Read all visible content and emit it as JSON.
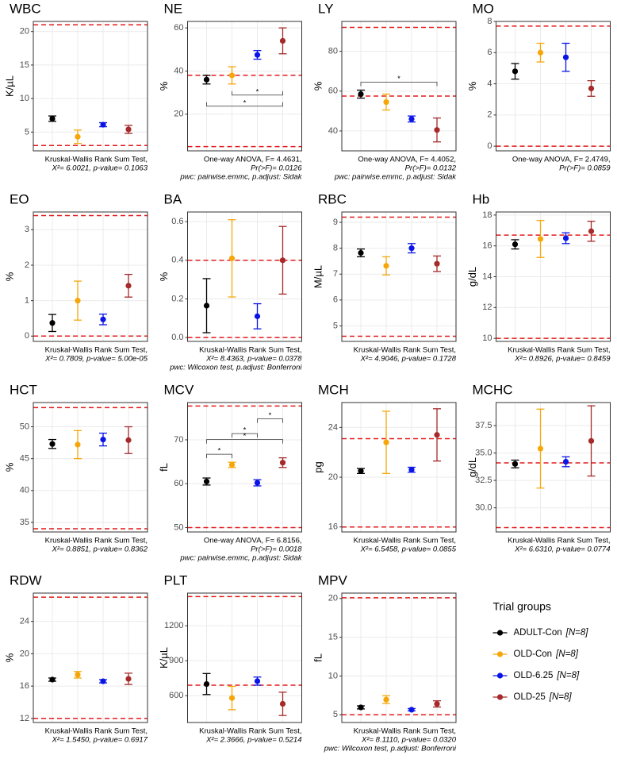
{
  "legend": {
    "title": "Trial groups",
    "entries": [
      {
        "name": "ADULT-Con",
        "n": "[N=8]",
        "color": "#000000"
      },
      {
        "name": "OLD-Con",
        "n": "[N=8]",
        "color": "#f5a70a"
      },
      {
        "name": "OLD-6.25",
        "n": "[N=8]",
        "color": "#0a14e6"
      },
      {
        "name": "OLD-25",
        "n": "[N=8]",
        "color": "#a52a2a"
      }
    ]
  },
  "chart_data": [
    {
      "type": "errorbar",
      "title": "WBC",
      "ylabel": "K/µL",
      "values": [
        7.0,
        4.3,
        6.1,
        5.4
      ],
      "errors": [
        0.4,
        1.0,
        0.3,
        0.6
      ],
      "ylim": [
        2.2,
        21.5
      ],
      "yticks": [
        5,
        10,
        15,
        20
      ],
      "ref_lines": [
        3,
        21
      ],
      "grid": true,
      "notes": [
        "Kruskal-Wallis Rank Sum Test,",
        "X²= 6.0021, p-value= 0.1063"
      ]
    },
    {
      "type": "errorbar",
      "title": "NE",
      "ylabel": "%",
      "values": [
        36,
        38,
        47.5,
        54
      ],
      "errors": [
        2,
        4,
        2,
        6
      ],
      "ylim": [
        3,
        63
      ],
      "yticks": [
        20,
        40,
        60
      ],
      "ref_lines": [
        5,
        38
      ],
      "grid": true,
      "brackets": [
        {
          "groups": [
            1,
            3
          ],
          "label": "*",
          "side": "below"
        },
        {
          "groups": [
            0,
            3
          ],
          "label": "*",
          "side": "below"
        }
      ],
      "notes": [
        "One-way ANOVA, F= 4.4631,",
        "Pr(>F)= 0.0126",
        "pwc: pairwise.emmc, p.adjust: Sidak"
      ]
    },
    {
      "type": "errorbar",
      "title": "LY",
      "ylabel": "%",
      "values": [
        58.5,
        54.5,
        46,
        40.5
      ],
      "errors": [
        2,
        4,
        1.5,
        6
      ],
      "ylim": [
        30,
        95
      ],
      "yticks": [
        40,
        60,
        80
      ],
      "ref_lines": [
        57.5,
        92
      ],
      "grid": true,
      "brackets": [
        {
          "groups": [
            0,
            3
          ],
          "label": "*",
          "side": "above"
        }
      ],
      "notes": [
        "One-way ANOVA, F= 4.4052,",
        "Pr(>F)= 0.0132",
        "pwc: pairwise.emmc, p.adjust: Sidak"
      ]
    },
    {
      "type": "errorbar",
      "title": "MO",
      "ylabel": "%",
      "values": [
        4.8,
        6.0,
        5.7,
        3.7
      ],
      "errors": [
        0.5,
        0.6,
        0.9,
        0.5
      ],
      "ylim": [
        -0.3,
        8
      ],
      "yticks": [
        0,
        2,
        4,
        6,
        8
      ],
      "ref_lines": [
        0,
        7.7
      ],
      "grid": true,
      "notes": [
        "One-way ANOVA, F= 2.4749,",
        "Pr(>F)= 0.0859"
      ]
    },
    {
      "type": "errorbar",
      "title": "EO",
      "ylabel": "%",
      "values": [
        0.37,
        1.0,
        0.47,
        1.42
      ],
      "errors": [
        0.24,
        0.55,
        0.15,
        0.32
      ],
      "ylim": [
        -0.15,
        3.5
      ],
      "yticks": [
        0,
        1,
        2,
        3
      ],
      "ref_lines": [
        0,
        3.4
      ],
      "grid": true,
      "notes": [
        "Kruskal-Wallis Rank Sum Test,",
        "X²= 0.7809, p-value= 5.00e-05"
      ]
    },
    {
      "type": "errorbar",
      "title": "BA",
      "ylabel": "%",
      "values": [
        0.165,
        0.41,
        0.11,
        0.4
      ],
      "errors": [
        0.14,
        0.2,
        0.065,
        0.175
      ],
      "ylim": [
        -0.02,
        0.65
      ],
      "yticks": [
        {
          "value": 0,
          "label": "0.0"
        },
        0.2,
        0.4,
        0.6
      ],
      "ref_lines": [
        0,
        0.4
      ],
      "grid": true,
      "notes": [
        "Kruskal-Wallis Rank Sum Test,",
        "X²= 8.4363, p-value= 0.0378",
        "pwc: Wilcoxon test, p.adjust: Bonferroni"
      ]
    },
    {
      "type": "errorbar",
      "title": "RBC",
      "ylabel": "M/µL",
      "values": [
        7.82,
        7.32,
        8.0,
        7.4
      ],
      "errors": [
        0.15,
        0.35,
        0.18,
        0.3
      ],
      "ylim": [
        4.4,
        9.4
      ],
      "yticks": [
        5,
        6,
        7,
        8,
        9
      ],
      "ref_lines": [
        4.6,
        9.2
      ],
      "grid": true,
      "notes": [
        "Kruskal-Wallis Rank Sum Test,",
        "X²= 4.9046, p-value= 0.1728"
      ]
    },
    {
      "type": "errorbar",
      "title": "Hb",
      "ylabel": "g/dL",
      "values": [
        16.1,
        16.45,
        16.5,
        16.95
      ],
      "errors": [
        0.3,
        1.2,
        0.35,
        0.65
      ],
      "ylim": [
        9.8,
        18.2
      ],
      "yticks": [
        10,
        12,
        14,
        16,
        18
      ],
      "ref_lines": [
        10,
        16.7
      ],
      "grid": true,
      "notes": [
        "Kruskal-Wallis Rank Sum Test,",
        "X²= 0.8926, p-value= 0.8459"
      ]
    },
    {
      "type": "errorbar",
      "title": "HCT",
      "ylabel": "%",
      "values": [
        47.3,
        47.2,
        48,
        47.9
      ],
      "errors": [
        0.7,
        2.2,
        1,
        2.1
      ],
      "ylim": [
        33.5,
        53.8
      ],
      "yticks": [
        35,
        40,
        45,
        50
      ],
      "ref_lines": [
        34,
        53
      ],
      "grid": true,
      "notes": [
        "Kruskal-Wallis Rank Sum Test,",
        "X²= 0.8851, p-value= 0.8362"
      ]
    },
    {
      "type": "errorbar",
      "title": "MCV",
      "ylabel": "fL",
      "values": [
        60.5,
        64.3,
        60.2,
        64.8
      ],
      "errors": [
        0.8,
        0.6,
        0.7,
        1.1
      ],
      "ylim": [
        49,
        78.5
      ],
      "yticks": [
        50,
        60,
        70
      ],
      "ref_lines": [
        50,
        77.7
      ],
      "grid": true,
      "brackets": [
        {
          "groups": [
            0,
            1
          ],
          "label": "*",
          "side": "above"
        },
        {
          "groups": [
            0,
            3
          ],
          "label": "*",
          "side": "above"
        },
        {
          "groups": [
            1,
            2
          ],
          "label": "*",
          "side": "above"
        },
        {
          "groups": [
            2,
            3
          ],
          "label": "*",
          "side": "above"
        }
      ],
      "notes": [
        "One-way ANOVA, F= 6.8156,",
        "Pr(>F)= 0.0018",
        "pwc: pairwise.emmc, p.adjust: Sidak"
      ]
    },
    {
      "type": "errorbar",
      "title": "MCH",
      "ylabel": "pg",
      "values": [
        20.5,
        22.8,
        20.6,
        23.4
      ],
      "errors": [
        0.2,
        2.5,
        0.2,
        2.1
      ],
      "ylim": [
        15.6,
        26
      ],
      "yticks": [
        16,
        20,
        24
      ],
      "ref_lines": [
        16,
        23.1
      ],
      "grid": true,
      "notes": [
        "Kruskal-Wallis Rank Sum Test,",
        "X²= 6.5458, p-value= 0.0855"
      ]
    },
    {
      "type": "errorbar",
      "title": "MCHC",
      "ylabel": "g/dL",
      "values": [
        34.0,
        35.4,
        34.2,
        36.1
      ],
      "errors": [
        0.35,
        3.6,
        0.45,
        3.2
      ],
      "ylim": [
        27.8,
        39.6
      ],
      "yticks": [
        {
          "value": 30,
          "label": "30.0"
        },
        32.5,
        {
          "value": 35,
          "label": "35.0"
        },
        37.5
      ],
      "ref_lines": [
        28.2,
        34.1
      ],
      "grid": true,
      "notes": [
        "Kruskal-Wallis Rank Sum Test,",
        "X²= 6.6310, p-value= 0.0774"
      ]
    },
    {
      "type": "errorbar",
      "title": "RDW",
      "ylabel": "%",
      "values": [
        16.8,
        17.4,
        16.6,
        16.9
      ],
      "errors": [
        0.2,
        0.4,
        0.2,
        0.7
      ],
      "ylim": [
        11.5,
        27.5
      ],
      "yticks": [
        12,
        16,
        20,
        24
      ],
      "ref_lines": [
        12,
        27
      ],
      "grid": true,
      "notes": [
        "Kruskal-Wallis Rank Sum Test,",
        "X²= 1.5450, p-value= 0.6917"
      ]
    },
    {
      "type": "errorbar",
      "title": "PLT",
      "ylabel": "K/µL",
      "values": [
        700,
        580,
        725,
        530
      ],
      "errors": [
        90,
        100,
        35,
        100
      ],
      "ylim": [
        370,
        1480
      ],
      "yticks": [
        600,
        900,
        1200
      ],
      "ref_lines": [
        690,
        1450
      ],
      "grid": true,
      "notes": [
        "Kruskal-Wallis Rank Sum Test,",
        "X²= 2.3666, p-value= 0.5214"
      ]
    },
    {
      "type": "errorbar",
      "title": "MPV",
      "ylabel": "fL",
      "values": [
        5.95,
        6.95,
        5.65,
        6.4
      ],
      "errors": [
        0.2,
        0.5,
        0.15,
        0.4
      ],
      "ylim": [
        4,
        20.7
      ],
      "yticks": [
        5,
        10,
        15,
        20
      ],
      "ref_lines": [
        5,
        20.1
      ],
      "grid": true,
      "notes": [
        "Kruskal-Wallis Rank Sum Test,",
        "X²= 8.1110, p-value= 0.0320",
        "pwc: Wilcoxon test, p.adjust: Bonferroni"
      ]
    }
  ]
}
